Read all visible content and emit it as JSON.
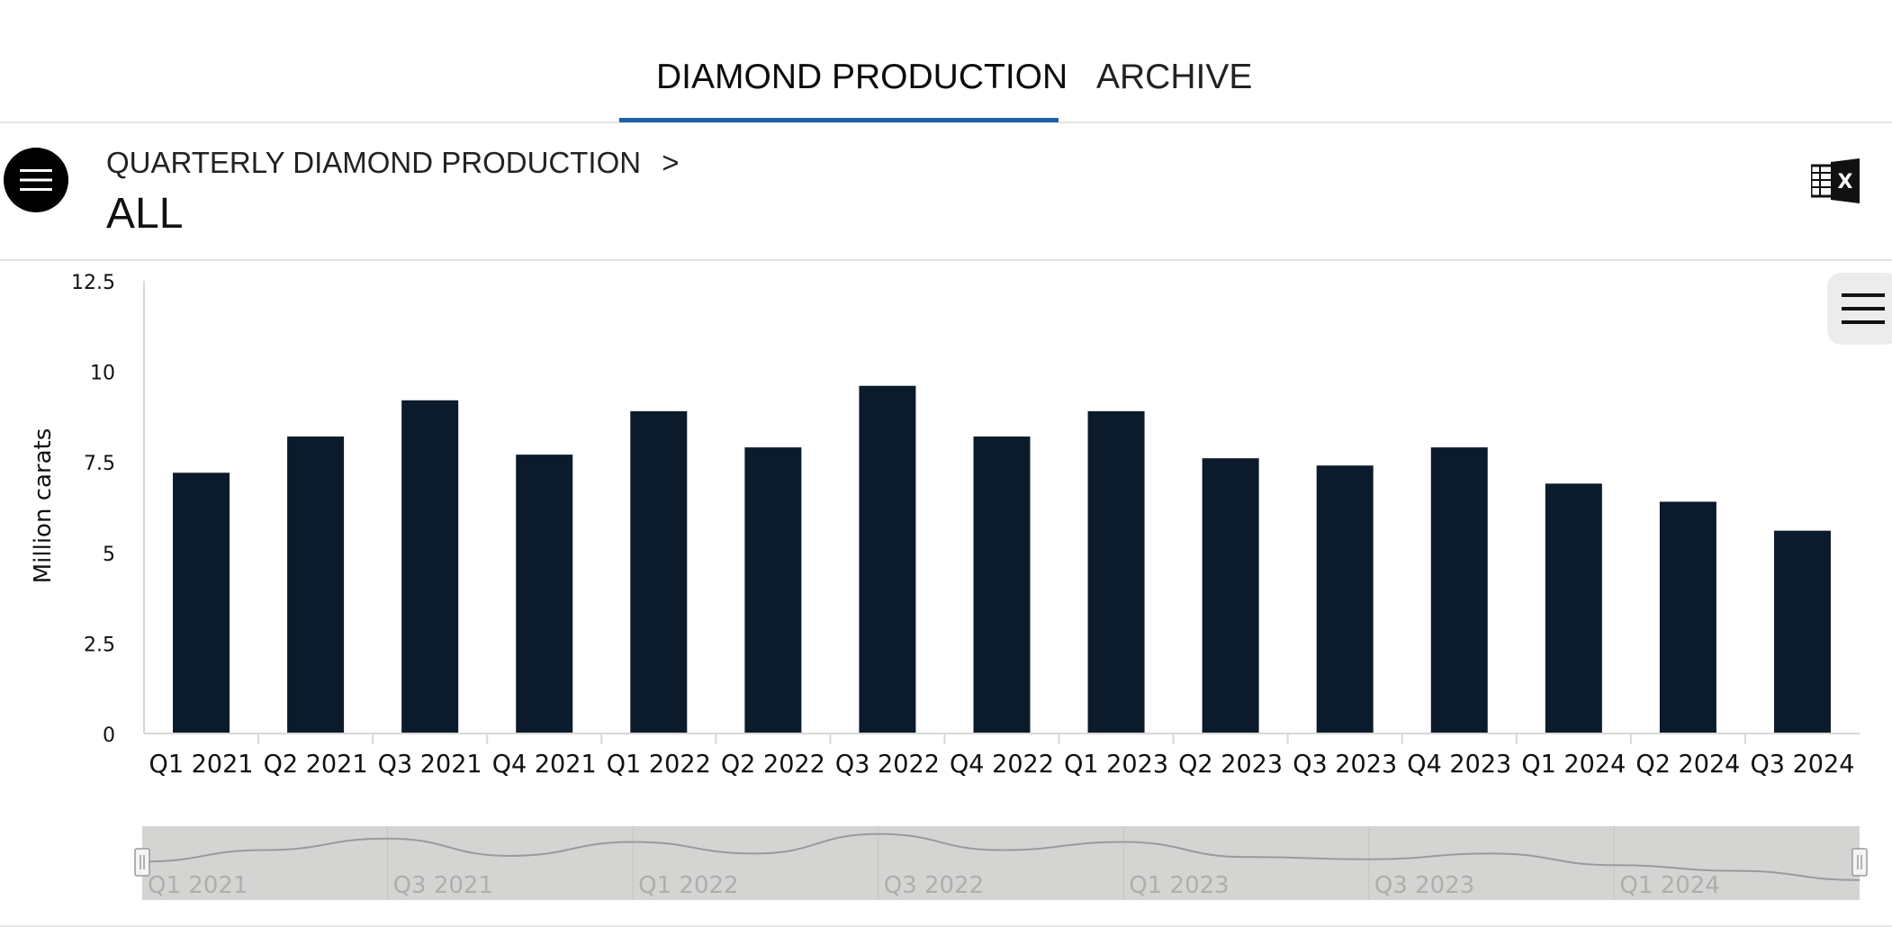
{
  "tabs": [
    {
      "label": "DIAMOND PRODUCTION",
      "active": true
    },
    {
      "label": "ARCHIVE",
      "active": false
    }
  ],
  "breadcrumb": {
    "section": "QUARTERLY DIAMOND PRODUCTION",
    "separator": ">",
    "current": "ALL"
  },
  "icons": {
    "menu": "menu-icon",
    "excel": "excel-export-icon",
    "chart_menu": "chart-menu-icon"
  },
  "colors": {
    "bar": "#0c1b2c",
    "accent": "#1d5fa4",
    "navigator_bg": "#d4d5d3",
    "navigator_line": "#9a9a9a"
  },
  "chart_data": {
    "type": "bar",
    "title": "",
    "xlabel": "",
    "ylabel": "Million carats",
    "ylim": [
      0,
      12.5
    ],
    "yticks": [
      "0",
      "2.5",
      "5",
      "7.5",
      "10",
      "12.5"
    ],
    "categories": [
      "Q1 2021",
      "Q2 2021",
      "Q3 2021",
      "Q4 2021",
      "Q1 2022",
      "Q2 2022",
      "Q3 2022",
      "Q4 2022",
      "Q1 2023",
      "Q2 2023",
      "Q3 2023",
      "Q4 2023",
      "Q1 2024",
      "Q2 2024",
      "Q3 2024"
    ],
    "values": [
      7.2,
      8.2,
      9.2,
      7.7,
      8.9,
      7.9,
      9.6,
      8.2,
      8.9,
      7.6,
      7.4,
      7.9,
      6.9,
      6.4,
      5.6
    ],
    "grid": false,
    "navigator": {
      "labels": [
        "Q1 2021",
        "Q3 2021",
        "Q1 2022",
        "Q3 2022",
        "Q1 2023",
        "Q3 2023",
        "Q1 2024"
      ]
    }
  }
}
